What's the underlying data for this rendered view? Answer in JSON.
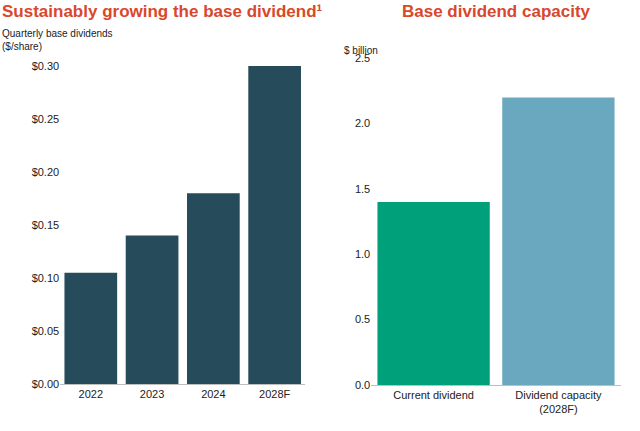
{
  "chart_data": [
    {
      "type": "bar",
      "title": "Sustainably growing the base dividend¹",
      "y_label": "Quarterly base dividends\n($/share)",
      "categories": [
        "2022",
        "2023",
        "2024",
        "2028F"
      ],
      "values": [
        0.105,
        0.14,
        0.18,
        0.3
      ],
      "color": "#264b5a",
      "ylim": [
        0,
        0.3
      ],
      "yticks": [
        {
          "value": 0,
          "label": "$0.00"
        },
        {
          "value": 0.05,
          "label": "$0.05"
        },
        {
          "value": 0.1,
          "label": "$0.10"
        },
        {
          "value": 0.15,
          "label": "$0.15"
        },
        {
          "value": 0.2,
          "label": "$0.20"
        },
        {
          "value": 0.25,
          "label": "$0.25"
        },
        {
          "value": 0.3,
          "label": "$0.30"
        }
      ],
      "grid": false
    },
    {
      "type": "bar",
      "title": "Base dividend capacity",
      "y_label": "$ billion",
      "categories": [
        "Current dividend",
        "Dividend capacity\n(2028F)"
      ],
      "values": [
        1.4,
        2.2
      ],
      "colors": [
        "#00a07a",
        "#6aa8bf"
      ],
      "ylim": [
        0,
        2.5
      ],
      "yticks": [
        {
          "value": 0,
          "label": "0.0"
        },
        0.5,
        {
          "value": 1,
          "label": "1.0"
        },
        1.5,
        {
          "value": 2,
          "label": "2.0"
        },
        2.5
      ],
      "grid": false
    }
  ]
}
